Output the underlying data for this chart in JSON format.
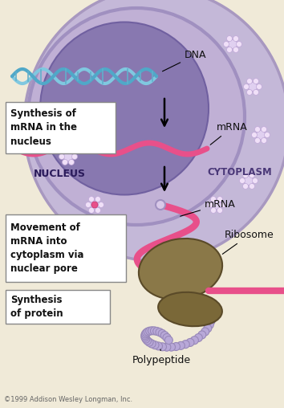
{
  "bg_color": "#f0ead8",
  "cell_outer_color": "#c4b8d8",
  "cell_outer_edge": "#a898c0",
  "nuclear_envelope_color": "#c0b0d5",
  "nuclear_envelope_edge": "#a090c0",
  "nucleus_color": "#8878b0",
  "nucleus_edge": "#7060a0",
  "dna_color1": "#80c8e0",
  "dna_color2": "#50a8c8",
  "mrna_color": "#e8508a",
  "ribosome_large_color": "#8a7848",
  "ribosome_small_color": "#7a6838",
  "polypeptide_color": "#b8a8d8",
  "polypeptide_edge": "#9888b8",
  "box_face": "#ffffff",
  "box_edge": "#888888",
  "text_color": "#111111",
  "nucleus_text_color": "#2a1a5a",
  "cytoplasm_text_color": "#4a3878",
  "label_dna": "DNA",
  "label_mrna_top": "mRNA",
  "label_mrna_mid": "mRNA",
  "label_nucleus": "NUCLEUS",
  "label_cytoplasm": "CYTOPLASM",
  "label_ribosome": "Ribosome",
  "label_polypeptide": "Polypeptide",
  "box1_text": "Synthesis of\nmRNA in the\nnucleus",
  "box2_text": "Movement of\nmRNA into\ncytoplasm via\nnuclear pore",
  "box3_text": "Synthesis\nof protein",
  "copyright": "©1999 Addison Wesley Longman, Inc."
}
